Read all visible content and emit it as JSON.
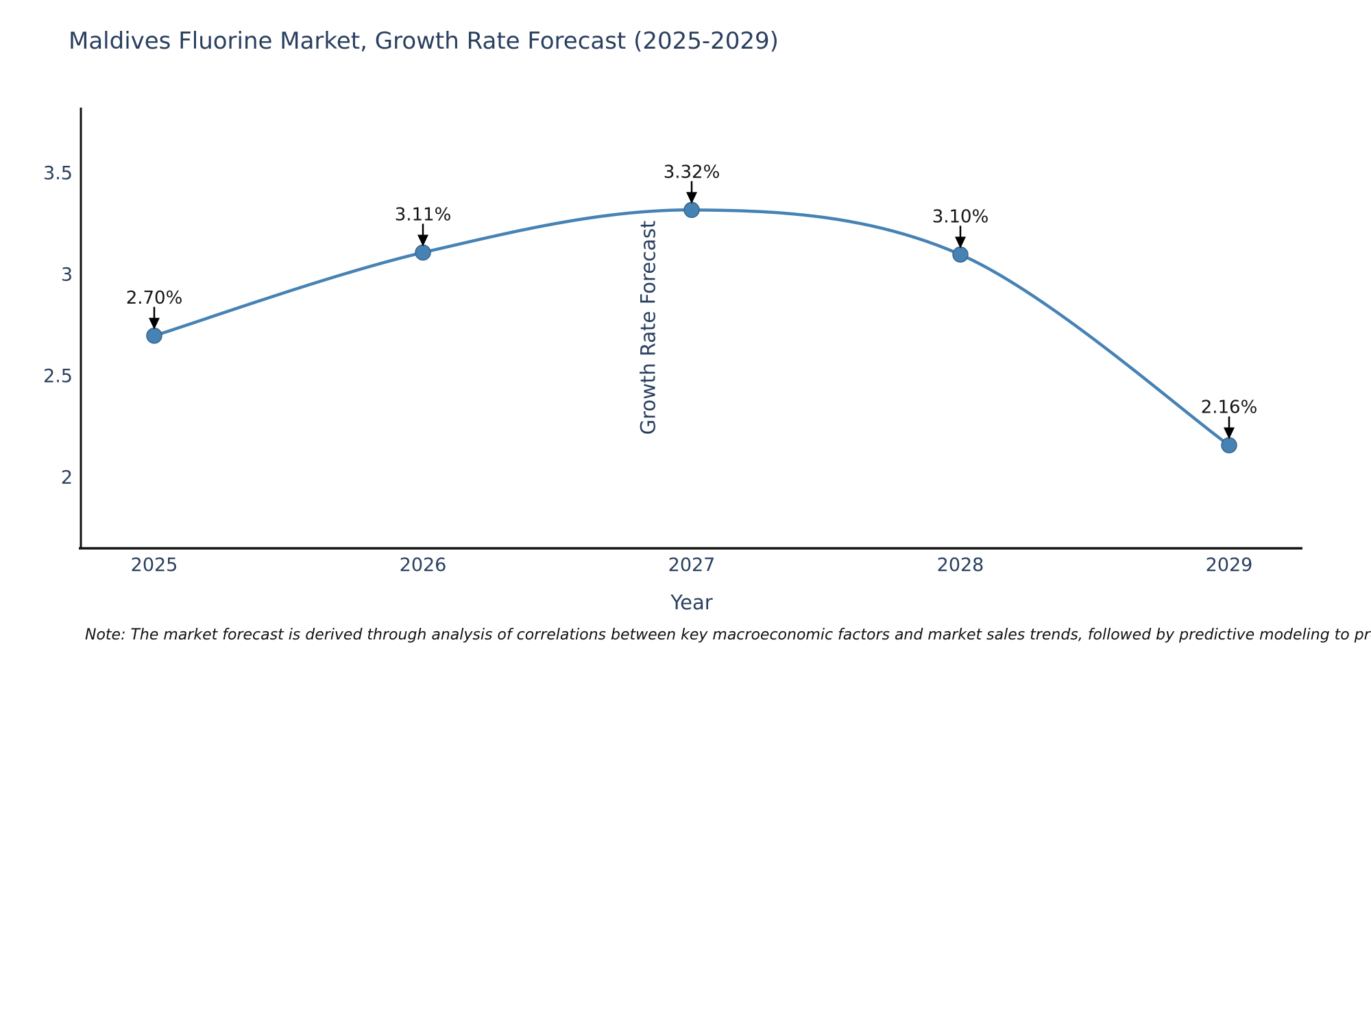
{
  "title": "Maldives Fluorine Market, Growth Rate Forecast (2025-2029)",
  "note": "Note: The market forecast is derived through analysis of correlations between key macroeconomic factors and market sales trends, followed by predictive modeling to project future sales",
  "chart_data": {
    "type": "line",
    "line_shape": "spline",
    "title": "Maldives Fluorine Market, Growth Rate Forecast (2025-2029)",
    "xlabel": "Year",
    "ylabel": "Growth Rate Forecast",
    "categories": [
      "2025",
      "2026",
      "2027",
      "2028",
      "2029"
    ],
    "values": [
      2.7,
      3.11,
      3.32,
      3.1,
      2.16
    ],
    "point_labels": [
      "2.70%",
      "3.11%",
      "3.32%",
      "3.10%",
      "2.16%"
    ],
    "yticks": [
      3.5,
      3,
      2.5,
      2
    ],
    "ytick_labels": [
      "3.5",
      "3",
      "2.5",
      "2"
    ],
    "ylim": [
      1.65,
      3.83
    ],
    "grid": false,
    "legend": false,
    "annotations_have_arrows": true,
    "colors": {
      "line": "#4682b4",
      "marker_fill": "#4682b4",
      "marker_edge": "#36648b",
      "axis_line": "#111111",
      "title_text": "#2a3f5f",
      "tick_text": "#2a3f5f",
      "annotation_text": "#141414",
      "arrow": "#000000",
      "background": "#ffffff"
    }
  }
}
